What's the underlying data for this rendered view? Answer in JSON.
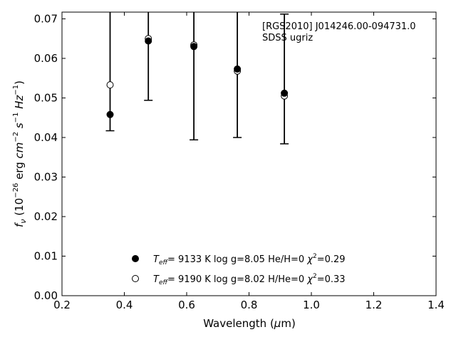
{
  "chart_data": {
    "type": "scatter",
    "annotation": [
      "[RGS2010] J014246.00-094731.0",
      "SDSS ugriz"
    ],
    "xlabel": {
      "main": "Wavelength (",
      "mu": "μ",
      "rest": "m)"
    },
    "ylabel": {
      "f": "f",
      "nu": "ν",
      "unit_a": " (10",
      "exp1": "−26",
      "unit_b": " erg ",
      "cm": "cm",
      "exp2": "−2",
      "s": " s",
      "exp3": "−1",
      "hz": " Hz",
      "exp4": "−1",
      "close": ")"
    },
    "xlim": [
      0.2,
      1.4
    ],
    "ylim": [
      0.0,
      0.0717
    ],
    "xticks": [
      0.2,
      0.4,
      0.6,
      0.8,
      1.0,
      1.2,
      1.4
    ],
    "xtick_labels": [
      "0.2",
      "0.4",
      "0.6",
      "0.8",
      "1.0",
      "1.2",
      "1.4"
    ],
    "yticks": [
      0.0,
      0.01,
      0.02,
      0.03,
      0.04,
      0.05,
      0.06,
      0.07
    ],
    "ytick_labels": [
      "0.00",
      "0.01",
      "0.02",
      "0.03",
      "0.04",
      "0.05",
      "0.06",
      "0.07"
    ],
    "observed": {
      "x": [
        0.3543,
        0.477,
        0.6231,
        0.7625,
        0.9134
      ],
      "y": [
        0.0458,
        0.0644,
        0.063,
        0.0573,
        0.0512
      ],
      "yerr_low": [
        0.0417,
        0.0494,
        0.0394,
        0.04,
        0.0384
      ],
      "yerr_high": [
        0.072,
        0.072,
        0.072,
        0.072,
        0.0712
      ]
    },
    "series": [
      {
        "marker": "filled",
        "color": "#000000",
        "x": [
          0.3543,
          0.477,
          0.6231,
          0.7625,
          0.9134
        ],
        "y": [
          0.0458,
          0.0644,
          0.063,
          0.0573,
          0.0512
        ],
        "legend": {
          "teff_symbol": "T",
          "teff_sub": "eff",
          "teff_val": "=  9133 K  log g=8.05  He/H=0  ",
          "chi": "χ",
          "chi_sup": "2",
          "chi_val": "=0.29"
        }
      },
      {
        "marker": "open",
        "color": "#000000",
        "x": [
          0.3543,
          0.477,
          0.6231,
          0.7625,
          0.9134
        ],
        "y": [
          0.0533,
          0.065,
          0.0634,
          0.0568,
          0.0505
        ],
        "legend": {
          "teff_symbol": "T",
          "teff_sub": "eff",
          "teff_val": "=  9190 K  log g=8.02  H/He=0  ",
          "chi": "χ",
          "chi_sup": "2",
          "chi_val": "=0.33"
        }
      }
    ]
  }
}
